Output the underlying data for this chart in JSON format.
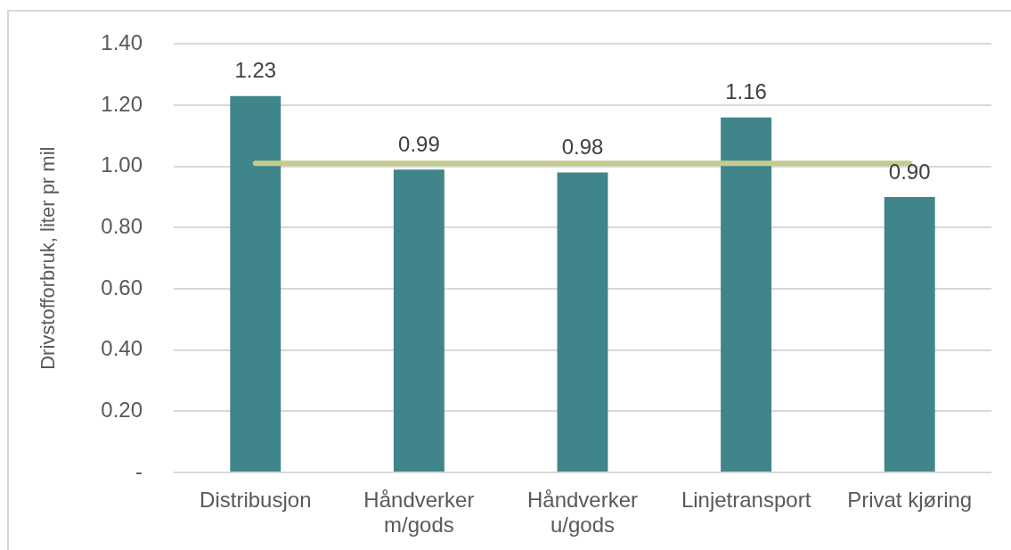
{
  "chart_data": {
    "type": "bar",
    "ylabel": "Drivstofforbruk, liter pr mil",
    "categories": [
      "Distribusjon",
      "Håndverker m/gods",
      "Håndverker u/gods",
      "Linjetransport",
      "Privat kjøring"
    ],
    "series": [
      {
        "color": "#40858a",
        "values": [
          1.23,
          0.99,
          0.98,
          1.16,
          0.9
        ],
        "value_labels": [
          "1.23",
          "0.99",
          "0.98",
          "1.16",
          "0.90"
        ]
      },
      {
        "type": "line",
        "color": "#c4cb8c",
        "values": [
          1.01,
          1.01,
          1.01,
          1.01,
          1.01
        ]
      }
    ],
    "ylim": [
      0,
      1.4
    ],
    "yticks": [
      {
        "value": 0,
        "label": "-"
      },
      {
        "value": 0.2,
        "label": "0.20"
      },
      {
        "value": 0.4,
        "label": "0.40"
      },
      {
        "value": 0.6,
        "label": "0.60"
      },
      {
        "value": 0.8,
        "label": "0.80"
      },
      {
        "value": 1,
        "label": "1.00"
      },
      {
        "value": 1.2,
        "label": "1.20"
      },
      {
        "value": 1.4,
        "label": "1.40"
      }
    ],
    "grid": "y",
    "legend": false,
    "marker": "none",
    "line_style": "solid"
  }
}
